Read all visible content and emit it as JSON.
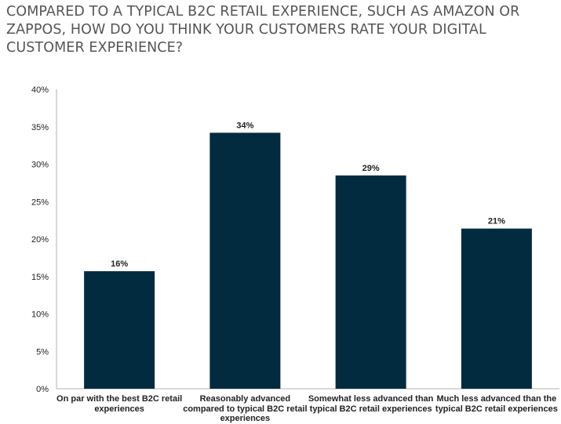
{
  "chart_data": {
    "type": "bar",
    "title": "COMPARED TO A TYPICAL B2C RETAIL EXPERIENCE, SUCH AS AMAZON OR ZAPPOS, HOW DO YOU THINK YOUR CUSTOMERS RATE YOUR DIGITAL CUSTOMER EXPERIENCE?",
    "categories": [
      "On par with the best B2C retail experiences",
      "Reasonably advanced compared to typical B2C retail experiences",
      "Somewhat less advanced than typical B2C retail experiences",
      "Much less advanced than the typical B2C retail experiences"
    ],
    "values": [
      15.7,
      34.2,
      28.5,
      21.4
    ],
    "data_labels": [
      "16%",
      "34%",
      "29%",
      "21%"
    ],
    "yticks": [
      "0%",
      "5%",
      "10%",
      "15%",
      "20%",
      "25%",
      "30%",
      "35%",
      "40%"
    ],
    "ylim": [
      0,
      40
    ],
    "xlabel": "",
    "ylabel": "",
    "bar_color": "#032b40",
    "axis_color": "#b3b3b3",
    "grid": false,
    "legend": false
  }
}
